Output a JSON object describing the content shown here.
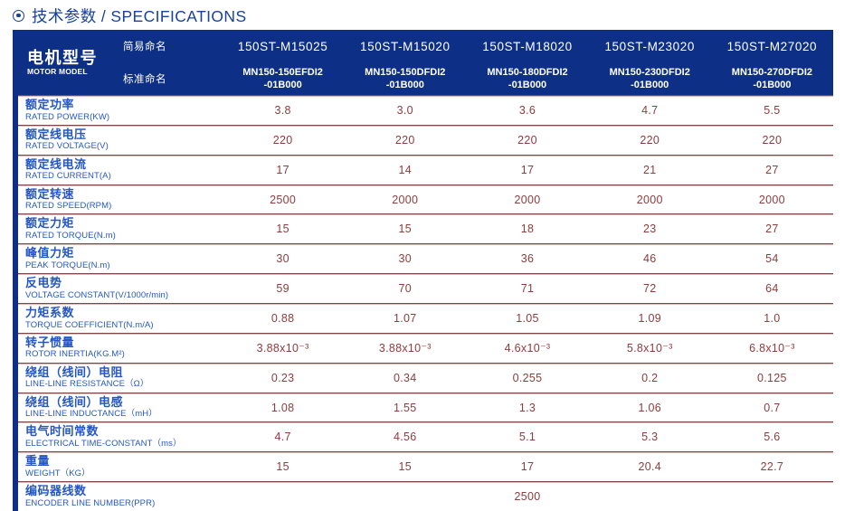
{
  "title": {
    "text": "技术参数 / SPECIFICATIONS"
  },
  "colors": {
    "navy": "#0d2f85",
    "title_blue": "#17429b",
    "label_blue": "#2457c5",
    "value_maroon": "#8e3c3c",
    "line_dark": "#7d4545",
    "line_light": "#dcbbbb"
  },
  "table": {
    "header": {
      "model_label_cn": "电机型号",
      "model_label_en": "MOTOR MODEL",
      "simple_name_label": "简易命名",
      "standard_name_label": "标准命名",
      "columns": [
        {
          "simple": "150ST-M15025",
          "standard_line1": "MN150-150EFDI2",
          "standard_line2": "-01B000"
        },
        {
          "simple": "150ST-M15020",
          "standard_line1": "MN150-150DFDI2",
          "standard_line2": "-01B000"
        },
        {
          "simple": "150ST-M18020",
          "standard_line1": "MN150-180DFDI2",
          "standard_line2": "-01B000"
        },
        {
          "simple": "150ST-M23020",
          "standard_line1": "MN150-230DFDI2",
          "standard_line2": "-01B000"
        },
        {
          "simple": "150ST-M27020",
          "standard_line1": "MN150-270DFDI2",
          "standard_line2": "-01B000"
        }
      ]
    },
    "rows": [
      {
        "label_cn": "额定功率",
        "label_en": "RATED POWER(KW)",
        "values": [
          "3.8",
          "3.0",
          "3.6",
          "4.7",
          "5.5"
        ]
      },
      {
        "label_cn": "额定线电压",
        "label_en": "RATED VOLTAGE(V)",
        "values": [
          "220",
          "220",
          "220",
          "220",
          "220"
        ]
      },
      {
        "label_cn": "额定线电流",
        "label_en": "RATED CURRENT(A)",
        "values": [
          "17",
          "14",
          "17",
          "21",
          "27"
        ]
      },
      {
        "label_cn": "额定转速",
        "label_en": "RATED SPEED(RPM)",
        "values": [
          "2500",
          "2000",
          "2000",
          "2000",
          "2000"
        ]
      },
      {
        "label_cn": "额定力矩",
        "label_en": "RATED TORQUE(N.m)",
        "values": [
          "15",
          "15",
          "18",
          "23",
          "27"
        ]
      },
      {
        "label_cn": "峰值力矩",
        "label_en": "PEAK TORQUE(N.m)",
        "values": [
          "30",
          "30",
          "36",
          "46",
          "54"
        ]
      },
      {
        "label_cn": "反电势",
        "label_en": "VOLTAGE CONSTANT(V/1000r/min)",
        "values": [
          "59",
          "70",
          "71",
          "72",
          "64"
        ]
      },
      {
        "label_cn": "力矩系数",
        "label_en": "TORQUE COEFFICIENT(N.m/A)",
        "values": [
          "0.88",
          "1.07",
          "1.05",
          "1.09",
          "1.0"
        ]
      },
      {
        "label_cn": "转子惯量",
        "label_en": "ROTOR INERTIA(KG.M²)",
        "values": [
          "3.88x10⁻³",
          "3.88x10⁻³",
          "4.6x10⁻³",
          "5.8x10⁻³",
          "6.8x10⁻³"
        ]
      },
      {
        "label_cn": "绕组（线间）电阻",
        "label_en": "LINE-LINE RESISTANCE（Ω）",
        "values": [
          "0.23",
          "0.34",
          "0.255",
          "0.2",
          "0.125"
        ]
      },
      {
        "label_cn": "绕组（线间）电感",
        "label_en": "LINE-LINE INDUCTANCE（mH）",
        "values": [
          "1.08",
          "1.55",
          "1.3",
          "1.06",
          "0.7"
        ]
      },
      {
        "label_cn": "电气时间常数",
        "label_en": "ELECTRICAL TIME-CONSTANT（ms）",
        "values": [
          "4.7",
          "4.56",
          "5.1",
          "5.3",
          "5.6"
        ]
      },
      {
        "label_cn": "重量",
        "label_en": "WEIGHT（KG）",
        "values": [
          "15",
          "15",
          "17",
          "20.4",
          "22.7"
        ]
      },
      {
        "label_cn": "编码器线数",
        "label_en": "ENCODER LINE NUMBER(PPR)",
        "values": [
          "2500"
        ],
        "span_all": true
      }
    ]
  }
}
